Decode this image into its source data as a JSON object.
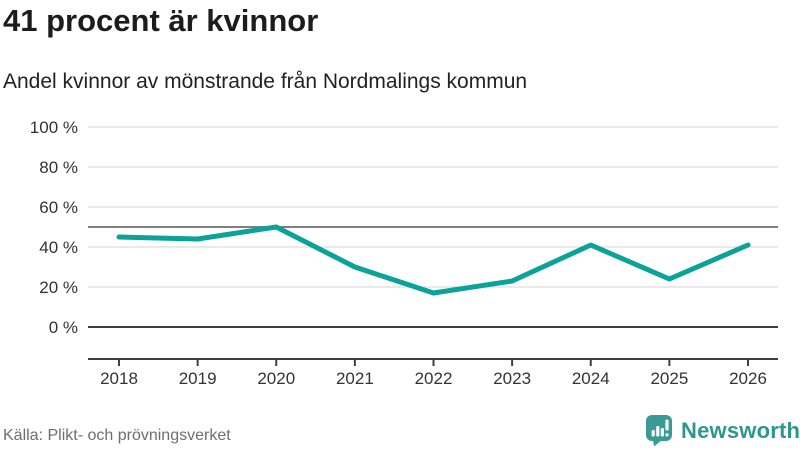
{
  "header": {
    "title": "41 procent är kvinnor",
    "subtitle": "Andel kvinnor av mönstrande från Nordmalings kommun"
  },
  "chart_data": {
    "type": "line",
    "title": "41 procent är kvinnor",
    "subtitle": "Andel kvinnor av mönstrande från Nordmalings kommun",
    "categories": [
      "2018",
      "2019",
      "2020",
      "2021",
      "2022",
      "2023",
      "2024",
      "2025",
      "2026"
    ],
    "series": [
      {
        "name": "Andel kvinnor av mönstrande",
        "values": [
          45,
          44,
          50,
          30,
          17,
          23,
          41,
          24,
          41
        ]
      }
    ],
    "xlabel": "",
    "ylabel": "",
    "ylim": [
      0,
      100
    ],
    "y_ticks": [
      0,
      20,
      40,
      60,
      80,
      100
    ],
    "y_tick_suffix": " %",
    "reference_line": 50,
    "grid": true,
    "legend": "none"
  },
  "footer": {
    "source": "Källa: Plikt- och prövningsverket",
    "brand": "Newsworthy"
  },
  "colors": {
    "line": "#0ba29a",
    "grid": "#e3e3e3",
    "ref_line": "#7f7f7f",
    "axis": "#3f3f3f",
    "text": "#333333",
    "title": "#1c1c1c",
    "subtitle": "#222222",
    "source": "#6e6e6e",
    "brand": "#2f968f",
    "brand_icon": "#3b9b94"
  }
}
